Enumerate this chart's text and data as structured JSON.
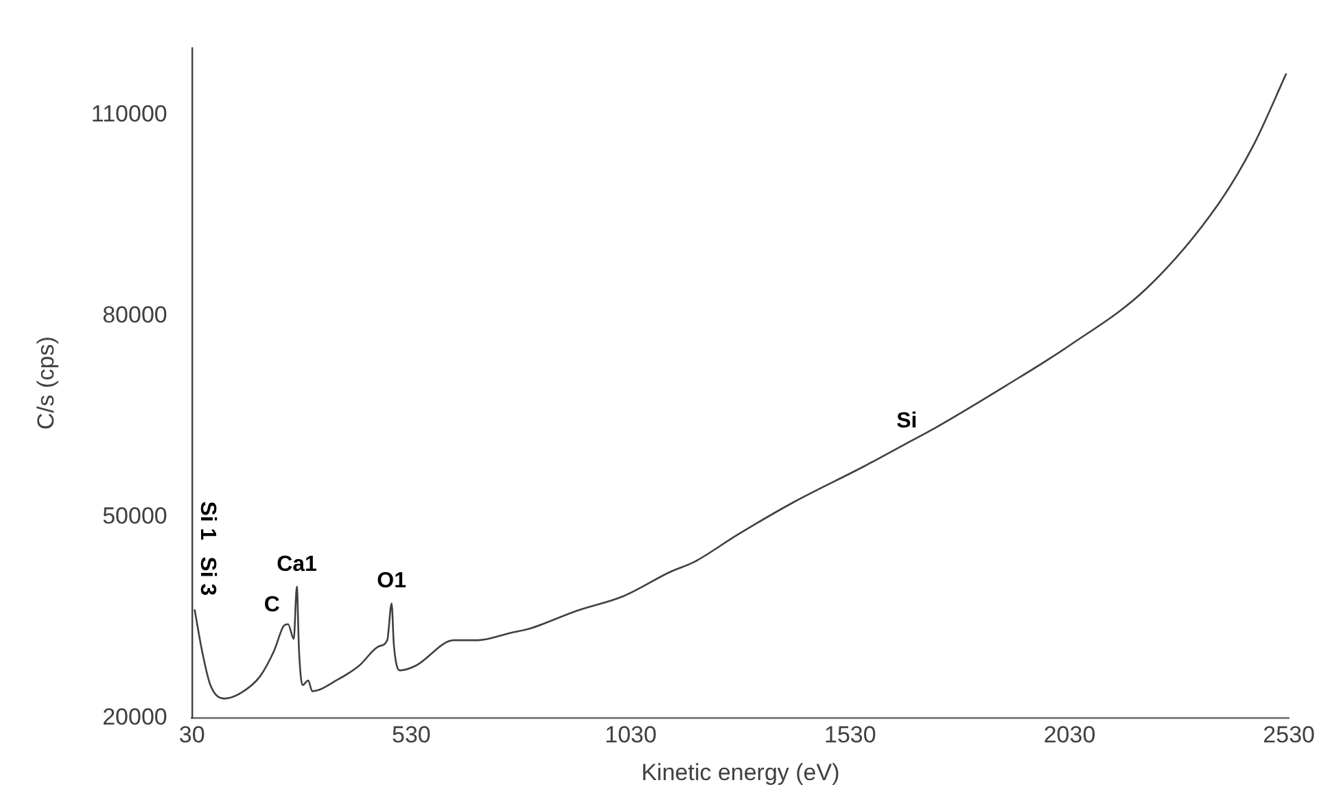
{
  "chart_data": {
    "type": "line",
    "xlabel": "Kinetic energy (eV)",
    "ylabel": "C/s (cps)",
    "xlim": [
      30,
      2530
    ],
    "xticks": [
      30,
      530,
      1030,
      1530,
      2030,
      2530
    ],
    "ylim": [
      20000,
      120000
    ],
    "yticks": [
      20000,
      50000,
      80000,
      110000
    ],
    "grid": false,
    "legend": false,
    "marker": "none",
    "line_style": "solid",
    "series": [
      {
        "color": "#404040",
        "x": [
          36,
          53,
          72,
          104,
          143,
          185,
          217,
          240,
          249,
          262,
          269,
          274,
          282,
          295,
          304,
          359,
          411,
          456,
          475,
          485,
          490,
          504,
          540,
          627,
          682,
          756,
          798,
          907,
          1014,
          1120,
          1175,
          1272,
          1401,
          1563,
          1659,
          1724,
          1885,
          2030,
          2207,
          2369,
          2450,
          2524
        ],
        "values": [
          36200,
          30000,
          24900,
          22900,
          23800,
          26200,
          30000,
          33800,
          34000,
          31800,
          39600,
          30000,
          24900,
          25600,
          24000,
          25600,
          27800,
          30700,
          31600,
          37100,
          31000,
          27100,
          27800,
          31600,
          31600,
          32700,
          33300,
          36000,
          38200,
          41800,
          43300,
          47300,
          52200,
          57600,
          61000,
          63300,
          69600,
          75600,
          84200,
          96700,
          105600,
          116200
        ]
      }
    ],
    "annotations": [
      "Si 1",
      "Si 3",
      {
        "text": "C",
        "x": 249,
        "y": 34000
      },
      {
        "text": "Ca1",
        "x": 269,
        "y": 39600
      },
      {
        "text": "O1",
        "x": 485,
        "y": 37100
      },
      {
        "text": "Si",
        "x": 1659,
        "y": 61000
      }
    ]
  }
}
